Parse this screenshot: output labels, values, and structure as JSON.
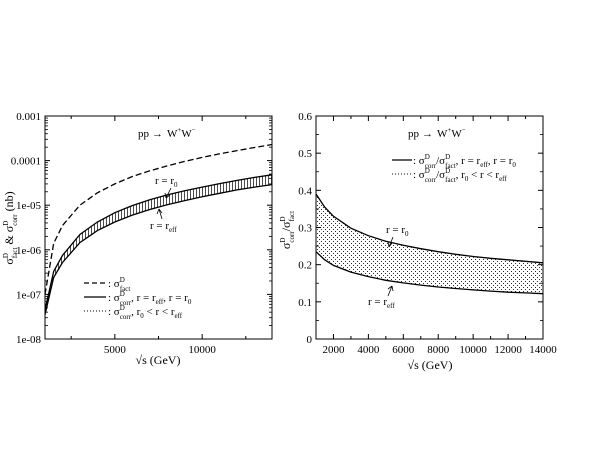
{
  "chart_data": [
    {
      "type": "line",
      "process": {
        "lhs": "pp",
        "arrow": "→",
        "w1": "W",
        "sup1": "+",
        "w2": "W",
        "sup2": "−"
      },
      "xlabel": "√s (GeV)",
      "ylabel": {
        "s1": "σ",
        "sup1": "D",
        "sub1": "fact",
        "amp": " & ",
        "s2": "σ",
        "sup2": "D",
        "sub2": "corr",
        "unit": " (nb)"
      },
      "xlim": [
        1000,
        14000
      ],
      "ylim": [
        1e-08,
        0.001
      ],
      "yscale": "log",
      "x_ticks": [
        5000,
        10000
      ],
      "x_tick_labels": [
        "5000",
        "10000"
      ],
      "y_ticks": [
        1e-08,
        1e-07,
        1e-06,
        1e-05,
        0.0001,
        0.001
      ],
      "y_tick_labels": [
        "1e-08",
        "1e-07",
        "1e-06",
        "1e-05",
        "0.0001",
        "0.001"
      ],
      "x": [
        1000,
        1500,
        2000,
        3000,
        4000,
        5000,
        6000,
        7000,
        8000,
        9000,
        10000,
        11000,
        12000,
        13000,
        14000
      ],
      "series": [
        {
          "style": "dashed",
          "values": [
            1e-07,
            1.4e-06,
            3.5e-06,
            1e-05,
            1.9e-05,
            3e-05,
            4.4e-05,
            5.9e-05,
            7.6e-05,
            9.6e-05,
            0.000118,
            0.000142,
            0.000168,
            0.000197,
            0.00023
          ]
        },
        {
          "style": "solid",
          "label": "r = r0",
          "values": [
            4.5e-08,
            3.3e-07,
            7.5e-07,
            2.2e-06,
            4.2e-06,
            6.8e-06,
            9.8e-06,
            1.33e-05,
            1.7e-05,
            2.1e-05,
            2.55e-05,
            3.05e-05,
            3.6e-05,
            4.2e-05,
            4.8e-05
          ]
        },
        {
          "style": "solid",
          "label": "r = reff",
          "values": [
            3.5e-08,
            2.4e-07,
            5.2e-07,
            1.45e-06,
            2.7e-06,
            4.2e-06,
            6e-06,
            8e-06,
            1.02e-05,
            1.27e-05,
            1.55e-05,
            1.85e-05,
            2.2e-05,
            2.55e-05,
            2.9e-05
          ]
        }
      ],
      "band": {
        "pattern": "vertical-hatch",
        "between": [
          "r = r0",
          "r = reff"
        ]
      },
      "curve_labels": [
        {
          "pre": "r = r",
          "sub": "0"
        },
        {
          "pre": "r = r",
          "sub": "eff"
        }
      ],
      "legend": {
        "position": "bottom-left",
        "entries": [
          {
            "style": "dashed",
            "sym": ": σ",
            "sup": "D",
            "sub": "fact",
            "rest": ""
          },
          {
            "style": "solid",
            "sym": ": σ",
            "sup": "D",
            "sub": "corr",
            "rest": ", r = r",
            "sub2": "eff",
            "rest2": ", r = r",
            "sub3": "0"
          },
          {
            "style": "dotted",
            "sym": ": σ",
            "sup": "D",
            "sub": "corr",
            "rest": ", r",
            "sub2": "0",
            "rest2": " < r < r",
            "sub3": "eff"
          }
        ]
      }
    },
    {
      "type": "line",
      "process": {
        "lhs": "pp",
        "arrow": "→",
        "w1": "W",
        "sup1": "+",
        "w2": "W",
        "sup2": "−"
      },
      "xlabel": "√s (GeV)",
      "ylabel": {
        "s1": "σ",
        "sup1": "D",
        "sub1": "corr",
        "slash": "/",
        "s2": "σ",
        "sup2": "D",
        "sub2": "fact"
      },
      "xlim": [
        1000,
        14000
      ],
      "ylim": [
        0,
        0.6
      ],
      "x_ticks": [
        2000,
        4000,
        6000,
        8000,
        10000,
        12000,
        14000
      ],
      "x_tick_labels": [
        "2000",
        "4000",
        "6000",
        "8000",
        "10000",
        "12000",
        "14000"
      ],
      "y_ticks": [
        0,
        0.1,
        0.2,
        0.3,
        0.4,
        0.5,
        0.6
      ],
      "y_tick_labels": [
        "0",
        "0.1",
        "0.2",
        "0.3",
        "0.4",
        "0.5",
        "0.6"
      ],
      "x": [
        1000,
        1500,
        2000,
        3000,
        4000,
        5000,
        6000,
        7000,
        8000,
        9000,
        10000,
        11000,
        12000,
        13000,
        14000
      ],
      "series": [
        {
          "style": "solid",
          "label": "r = r0",
          "values": [
            0.39,
            0.355,
            0.33,
            0.298,
            0.278,
            0.263,
            0.252,
            0.243,
            0.235,
            0.228,
            0.222,
            0.217,
            0.213,
            0.209,
            0.205
          ]
        },
        {
          "style": "solid",
          "label": "r = reff",
          "values": [
            0.235,
            0.213,
            0.198,
            0.18,
            0.168,
            0.158,
            0.151,
            0.145,
            0.14,
            0.136,
            0.132,
            0.129,
            0.126,
            0.124,
            0.122
          ]
        }
      ],
      "band": {
        "pattern": "dots",
        "between": [
          "r = r0",
          "r = reff"
        ]
      },
      "curve_labels": [
        {
          "pre": "r = r",
          "sub": "0"
        },
        {
          "pre": "r = r",
          "sub": "eff"
        }
      ],
      "legend": {
        "position": "top-right",
        "entries": [
          {
            "style": "solid",
            "sym": ": σ",
            "sup": "D",
            "sub": "corr",
            "rest": "/σ",
            "sup2": "D",
            "sub2": "fact",
            "rest2": ", r = r",
            "sub3": "eff",
            "rest3": ", r = r",
            "sub4": "0"
          },
          {
            "style": "dotted",
            "sym": ": σ",
            "sup": "D",
            "sub": "corr",
            "rest": "/σ",
            "sup2": "D",
            "sub2": "fact",
            "rest2": ", r",
            "sub3": "0",
            "rest3": " < r < r",
            "sub4": "eff"
          }
        ]
      }
    }
  ]
}
